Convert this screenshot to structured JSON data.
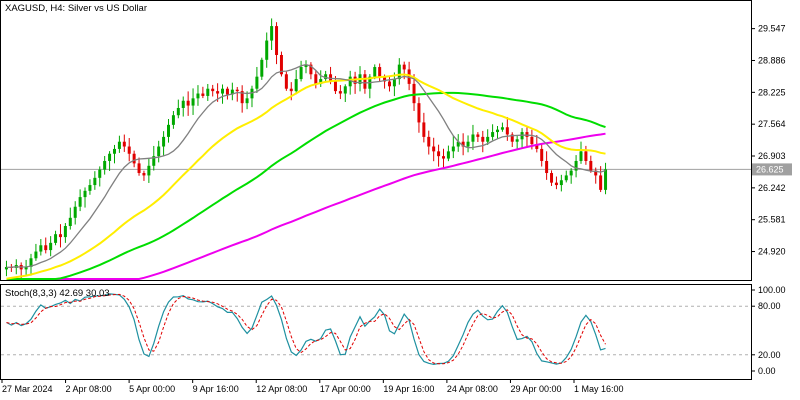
{
  "chart_data": {
    "type": "candlestick",
    "title": "XAGUSD, H4:  Silver vs US Dollar",
    "current_price_label": "26.625",
    "current_price": 26.625,
    "price_ylim": [
      24.35,
      30.1
    ],
    "price_ticks": [
      "29.547",
      "28.886",
      "28.225",
      "27.564",
      "26.903",
      "26.242",
      "25.581",
      "24.920"
    ],
    "x_labels": [
      "27 Mar 2024",
      "2 Apr 08:00",
      "5 Apr 00:00",
      "9 Apr 16:00",
      "12 Apr 08:00",
      "17 Apr 00:00",
      "19 Apr 16:00",
      "24 Apr 08:00",
      "29 Apr 00:00",
      "1 May 16:00"
    ],
    "colors": {
      "bull": "#00a800",
      "bear": "#e00000",
      "ma_fast": "#808080",
      "ma_mid": "#ffee00",
      "ma_slow": "#00dd00",
      "ma_long": "#ee00ee",
      "stoch_main": "#1e90a0",
      "stoch_signal": "#e00000",
      "grid": "#c0c0c0"
    },
    "closes": [
      24.6,
      24.58,
      24.64,
      24.55,
      24.6,
      24.78,
      24.92,
      25.05,
      24.95,
      25.1,
      25.28,
      25.22,
      25.45,
      25.62,
      25.85,
      26.05,
      26.18,
      26.3,
      26.45,
      26.62,
      26.8,
      26.95,
      27.05,
      27.2,
      27.1,
      26.95,
      26.75,
      26.55,
      26.5,
      26.7,
      26.9,
      27.1,
      27.3,
      27.55,
      27.75,
      27.9,
      28.05,
      27.95,
      28.1,
      28.2,
      28.15,
      28.3,
      28.25,
      28.2,
      28.3,
      28.18,
      28.28,
      28.25,
      28.0,
      28.1,
      28.3,
      28.55,
      28.9,
      29.3,
      29.6,
      29.0,
      28.6,
      28.3,
      28.25,
      28.5,
      28.75,
      28.8,
      28.6,
      28.4,
      28.5,
      28.6,
      28.45,
      28.25,
      28.2,
      28.35,
      28.55,
      28.4,
      28.6,
      28.3,
      28.55,
      28.75,
      28.55,
      28.45,
      28.35,
      28.5,
      28.8,
      28.7,
      28.4,
      28.0,
      27.6,
      27.3,
      27.1,
      27.0,
      26.9,
      26.85,
      27.0,
      27.1,
      27.2,
      27.1,
      27.2,
      27.35,
      27.3,
      27.2,
      27.3,
      27.4,
      27.45,
      27.5,
      27.35,
      27.2,
      27.25,
      27.4,
      27.3,
      27.15,
      27.05,
      26.8,
      26.55,
      26.35,
      26.3,
      26.4,
      26.5,
      26.6,
      26.8,
      27.0,
      26.8,
      26.6,
      26.5,
      26.2,
      26.625
    ],
    "ma_fast_period": 10,
    "ma_mid_period": 30,
    "ma_slow_period": 60,
    "ma_long_period": 120,
    "stochastic": {
      "label": "Stoch(8,3,3) 42.69 30.03",
      "ylim": [
        0,
        100
      ],
      "levels": [
        20,
        80
      ],
      "tick_labels": [
        "100.00",
        "80.00",
        "20.00",
        "0.00"
      ],
      "k_period": 8,
      "d_period": 3,
      "slowing": 3
    }
  }
}
